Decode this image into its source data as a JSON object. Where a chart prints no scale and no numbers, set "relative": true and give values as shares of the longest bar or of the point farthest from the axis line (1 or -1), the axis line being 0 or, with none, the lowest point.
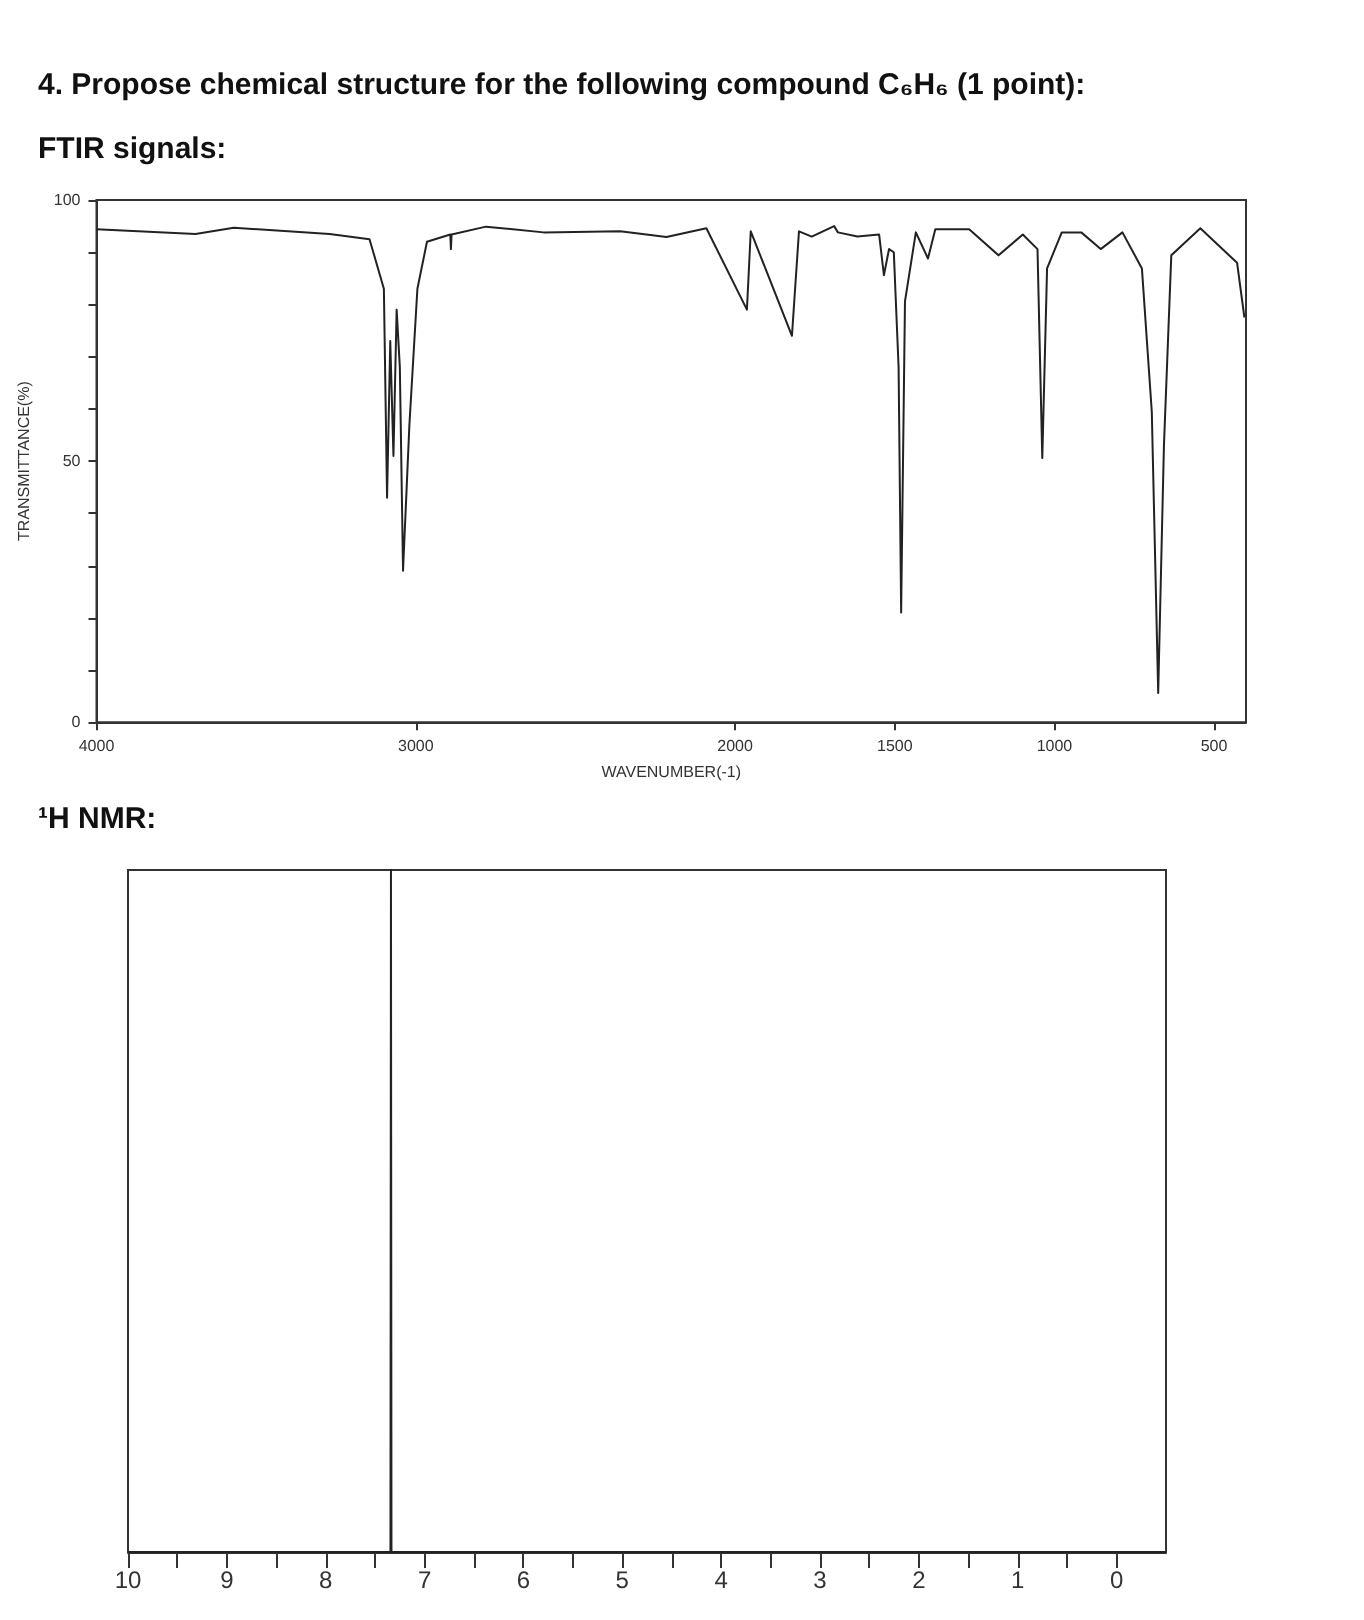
{
  "chart_data": [
    {
      "type": "line",
      "title": "4. Propose chemical structure for the following compound C₆H₆ (1 point):",
      "subtitle": "FTIR signals:",
      "xlabel": "WAVENUMBER(-1)",
      "ylabel": "TRANSMITTANCE(%)",
      "color": "#222222",
      "marker": "none",
      "x": [
        4000,
        3690,
        3570,
        3270,
        3145,
        3100,
        3090,
        3080,
        3070,
        3060,
        3050,
        3040,
        3020,
        2995,
        2965,
        2892,
        2890,
        2888,
        2780,
        2600,
        2360,
        2215,
        2090,
        1963,
        1951,
        1822,
        1800,
        1760,
        1690,
        1678,
        1617,
        1549,
        1534,
        1518,
        1503,
        1488,
        1480,
        1468,
        1434,
        1396,
        1373,
        1267,
        1175,
        1099,
        1053,
        1038,
        1023,
        977,
        916,
        855,
        787,
        726,
        695,
        675,
        657,
        634,
        543,
        474,
        428,
        405
      ],
      "values": [
        94.4,
        93.5,
        94.7,
        93.5,
        92.5,
        83,
        43,
        73,
        51,
        79,
        68,
        29,
        57,
        83,
        92,
        93.4,
        90.6,
        93.4,
        94.9,
        93.8,
        94,
        92.9,
        94.6,
        79,
        94,
        74,
        94,
        93,
        95,
        93.8,
        93,
        93.4,
        85.6,
        90.6,
        90,
        68,
        21,
        80.6,
        93.8,
        88.8,
        94.4,
        94.4,
        89.4,
        93.4,
        90.6,
        50.6,
        86.9,
        93.8,
        93.8,
        90.6,
        93.8,
        86.9,
        59.4,
        5.6,
        53,
        89.4,
        94.6,
        90.6,
        88,
        77.5
      ],
      "xlim": [
        4000,
        400
      ],
      "ylim": [
        0,
        100
      ],
      "xticks": [
        4000,
        3000,
        2000,
        1500,
        1000,
        500
      ],
      "yticks": [
        0,
        {
          "value": 10,
          "label": null
        },
        {
          "value": 20,
          "label": null
        },
        {
          "value": 30,
          "label": null
        },
        {
          "value": 40,
          "label": null
        },
        50,
        {
          "value": 60,
          "label": null
        },
        {
          "value": 70,
          "label": null
        },
        {
          "value": 80,
          "label": null
        },
        {
          "value": 90,
          "label": null
        },
        100
      ]
    },
    {
      "type": "line",
      "title": "¹H NMR:",
      "color": "#222222",
      "marker": "none",
      "relative": true,
      "tick_labels": "x",
      "x": [
        10,
        7.345,
        7.34,
        7.335,
        -0.5
      ],
      "values": [
        0,
        0,
        1,
        0,
        0
      ],
      "xlim": [
        10,
        -0.5
      ],
      "xticks": [
        10,
        {
          "value": 9.5,
          "label": null
        },
        9,
        {
          "value": 8.5,
          "label": null
        },
        8,
        {
          "value": 7.5,
          "label": null
        },
        7,
        {
          "value": 6.5,
          "label": null
        },
        6,
        {
          "value": 5.5,
          "label": null
        },
        5,
        {
          "value": 4.5,
          "label": null
        },
        4,
        {
          "value": 3.5,
          "label": null
        },
        3,
        {
          "value": 2.5,
          "label": null
        },
        2,
        {
          "value": 1.5,
          "label": null
        },
        1,
        {
          "value": 0.5,
          "label": null
        },
        0
      ]
    }
  ]
}
